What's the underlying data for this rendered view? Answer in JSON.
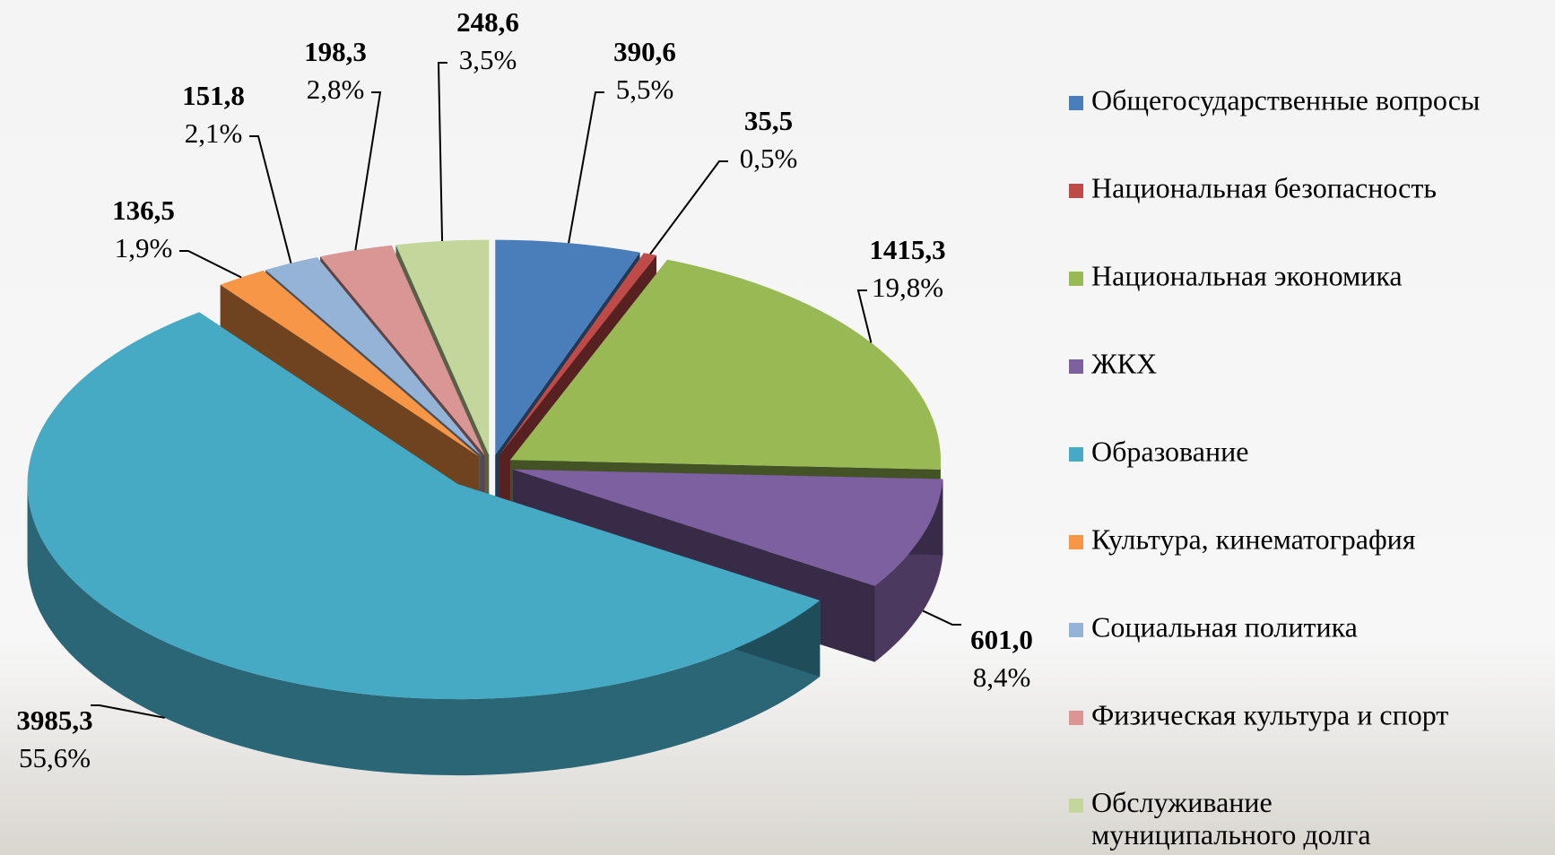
{
  "chart_data": {
    "type": "pie3d",
    "categories": [
      "Общегосударственные вопросы",
      "Национальная безопасность",
      "Национальная экономика",
      "ЖКХ",
      "Образование",
      "Культура, кинематография",
      "Социальная политика",
      "Физическая культура и спорт",
      "Обслуживание муниципального долга"
    ],
    "values": [
      390.6,
      35.5,
      1415.3,
      601.0,
      3985.3,
      136.5,
      151.8,
      198.3,
      248.6
    ],
    "value_labels": [
      "390,6",
      "35,5",
      "1415,3",
      "601,0",
      "3985,3",
      "136,5",
      "151,8",
      "198,3",
      "248,6"
    ],
    "percents": [
      5.5,
      0.5,
      19.8,
      8.4,
      55.6,
      1.9,
      2.1,
      2.8,
      3.5
    ],
    "percent_labels": [
      "5,5%",
      "0,5%",
      "19,8%",
      "8,4%",
      "55,6%",
      "1,9%",
      "2,1%",
      "2,8%",
      "3,5%"
    ],
    "colors": [
      "#4a7ebb",
      "#be4b48",
      "#98b954",
      "#7d60a0",
      "#46aac5",
      "#f79646",
      "#95b3d7",
      "#d99694",
      "#c3d69b"
    ],
    "legend": "right"
  }
}
